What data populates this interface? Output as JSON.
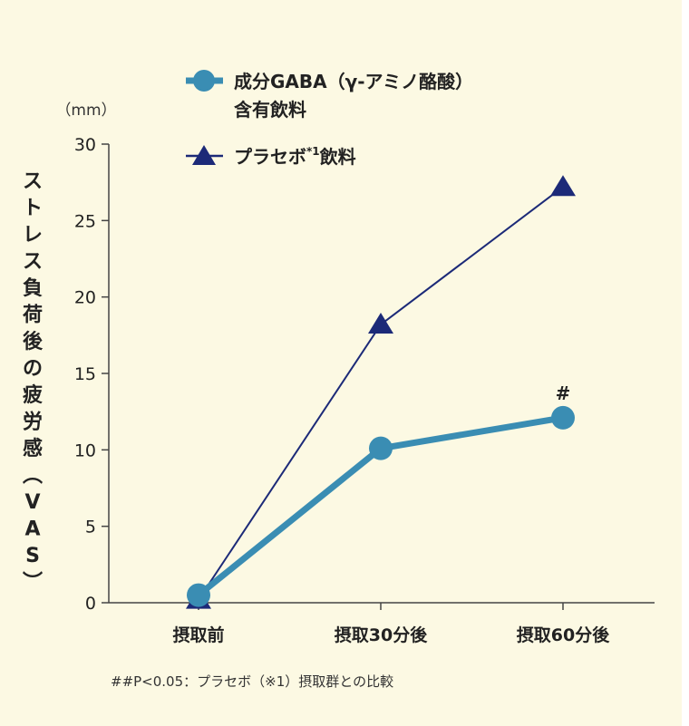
{
  "chart_data": {
    "type": "line",
    "categories": [
      "摂取前",
      "摂取30分後",
      "摂取60分後"
    ],
    "series": [
      {
        "name": "成分GABA（γ-アミノ酪酸）含有飲料",
        "name_line1": "成分GABA（γ-アミノ酪酸）",
        "name_line2": "含有飲料",
        "values": [
          0.5,
          10.1,
          12.1
        ],
        "color": "#3a8db3",
        "marker": "circle"
      },
      {
        "name": "プラセボ*1飲料",
        "name_main": "プラセボ",
        "name_sup": "*1",
        "name_tail": "飲料",
        "values": [
          0.2,
          18.2,
          27.2
        ],
        "color": "#1c2a78",
        "marker": "triangle"
      }
    ],
    "ylabel": "ストレス負荷後の疲労感（VAS）",
    "yunit": "（mm）",
    "ylim": [
      0,
      30
    ],
    "yticks": [
      0,
      5,
      10,
      15,
      20,
      25,
      30
    ],
    "annotations": [
      {
        "category": "摂取60分後",
        "text": "#"
      }
    ],
    "footnote": "##P<0.05：プラセボ（※1）摂取群との比較",
    "grid": false,
    "legend": "top"
  }
}
